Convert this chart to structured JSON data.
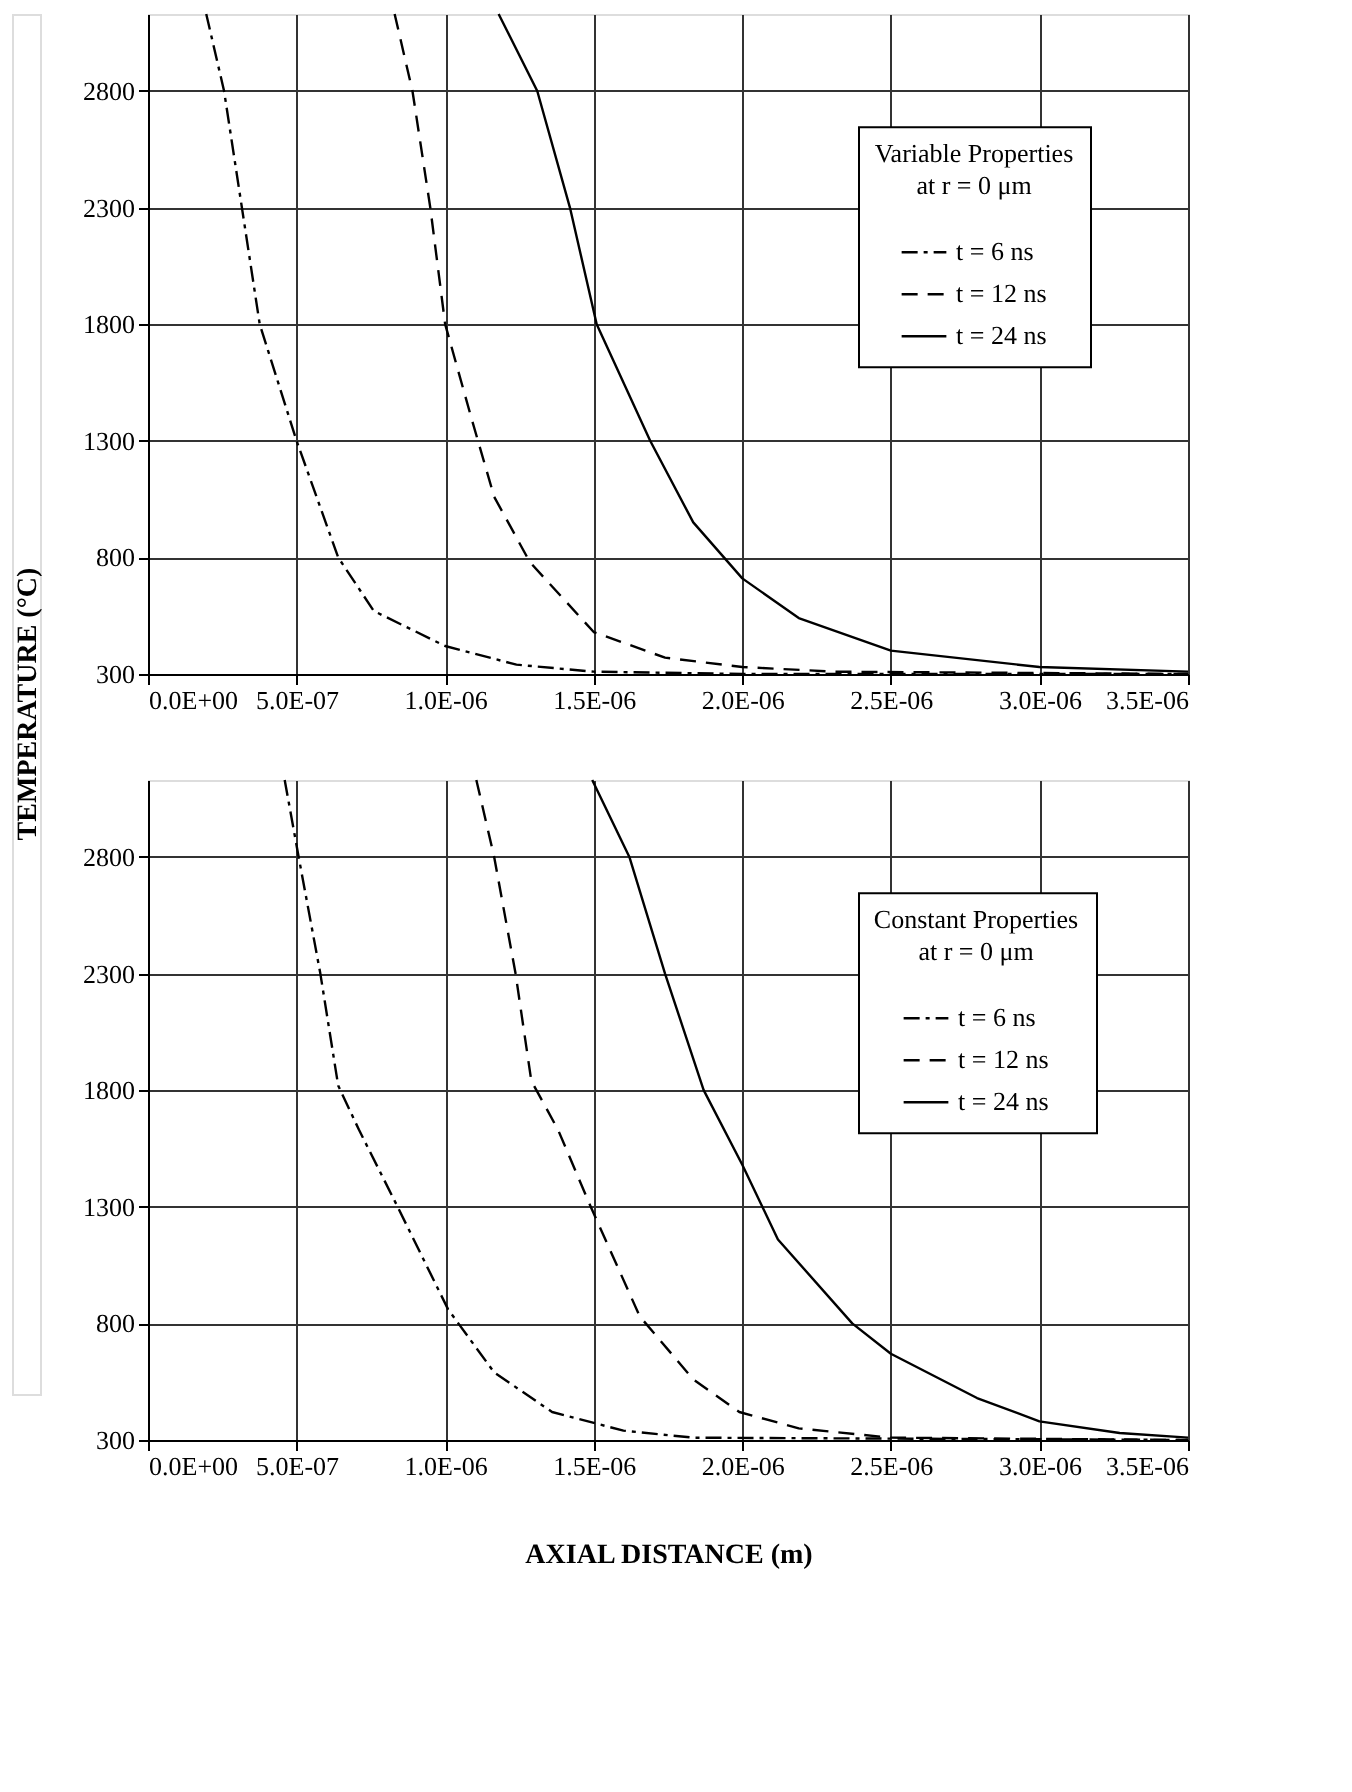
{
  "chart_data": [
    {
      "type": "line",
      "ylabel": "TEMPERATURE (°C)",
      "annotations": [
        "Variable Properties\nat r = 0 μm"
      ],
      "xlim": [
        0,
        3.5e-06
      ],
      "ylim": [
        300,
        3130
      ],
      "xticks": [
        {
          "value": 0,
          "label": "0.0E+00"
        },
        {
          "value": 5e-07,
          "label": "5.0E-07"
        },
        {
          "value": 1e-06,
          "label": "1.0E-06"
        },
        {
          "value": 1.5e-06,
          "label": "1.5E-06"
        },
        {
          "value": 2e-06,
          "label": "2.0E-06"
        },
        {
          "value": 2.5e-06,
          "label": "2.5E-06"
        },
        {
          "value": 3e-06,
          "label": "3.0E-06"
        },
        {
          "value": 3.5e-06,
          "label": "3.5E-06"
        }
      ],
      "yticks": [
        300,
        800,
        1300,
        1800,
        2300,
        2800
      ],
      "grid": true,
      "legend": "right",
      "marker": "none",
      "series": [
        {
          "name": "t = 6 ns",
          "color": "#000000",
          "line_style": "dashdot",
          "x": [
            1.96e-07,
            2.56e-07,
            3.16e-07,
            3.76e-07,
            5e-07,
            6.4e-07,
            7.6e-07,
            1e-06,
            1.24e-06,
            1.5e-06,
            2e-06,
            3.5e-06
          ],
          "values": [
            3130,
            2800,
            2300,
            1800,
            1300,
            800,
            570,
            420,
            340,
            310,
            300,
            300
          ]
        },
        {
          "name": "t = 12 ns",
          "color": "#000000",
          "line_style": "dashed",
          "x": [
            8.3e-07,
            8.9e-07,
            9.5e-07,
            1e-06,
            1.09e-06,
            1.165e-06,
            1.285e-06,
            1.5e-06,
            1.74e-06,
            2e-06,
            2.31e-06,
            3.5e-06
          ],
          "values": [
            3130,
            2800,
            2300,
            1800,
            1390,
            1060,
            780,
            480,
            370,
            330,
            310,
            300
          ]
        },
        {
          "name": "t = 24 ns",
          "color": "#000000",
          "line_style": "solid",
          "x": [
            1.18e-06,
            1.31e-06,
            1.42e-06,
            1.51e-06,
            1.69e-06,
            1.835e-06,
            2e-06,
            2.19e-06,
            2.5e-06,
            3e-06,
            3.5e-06
          ],
          "values": [
            3130,
            2800,
            2300,
            1800,
            1300,
            950,
            710,
            540,
            400,
            330,
            310
          ]
        }
      ]
    },
    {
      "type": "line",
      "xlabel": "AXIAL DISTANCE (m)",
      "annotations": [
        "Constant Properties\nat r = 0 μm"
      ],
      "xlim": [
        0,
        3.5e-06
      ],
      "ylim": [
        300,
        3130
      ],
      "xticks": [
        {
          "value": 0,
          "label": "0.0E+00"
        },
        {
          "value": 5e-07,
          "label": "5.0E-07"
        },
        {
          "value": 1e-06,
          "label": "1.0E-06"
        },
        {
          "value": 1.5e-06,
          "label": "1.5E-06"
        },
        {
          "value": 2e-06,
          "label": "2.0E-06"
        },
        {
          "value": 2.5e-06,
          "label": "2.5E-06"
        },
        {
          "value": 3e-06,
          "label": "3.0E-06"
        },
        {
          "value": 3.5e-06,
          "label": "3.5E-06"
        }
      ],
      "yticks": [
        300,
        800,
        1300,
        1800,
        2300,
        2800
      ],
      "grid": true,
      "legend": "right",
      "marker": "none",
      "series": [
        {
          "name": "t = 6 ns",
          "color": "#000000",
          "line_style": "dashdot",
          "x": [
            4.6e-07,
            5.07e-07,
            5.8e-07,
            6.4e-07,
            7.1e-07,
            8.4e-07,
            1.01e-06,
            1.165e-06,
            1.36e-06,
            1.6e-06,
            1.835e-06,
            3.5e-06
          ],
          "values": [
            3130,
            2800,
            2300,
            1820,
            1630,
            1300,
            860,
            590,
            420,
            340,
            310,
            300
          ]
        },
        {
          "name": "t = 12 ns",
          "color": "#000000",
          "line_style": "dashed",
          "x": [
            1.105e-06,
            1.165e-06,
            1.237e-06,
            1.29e-06,
            1.38e-06,
            1.49e-06,
            1.655e-06,
            1.835e-06,
            1.99e-06,
            2.19e-06,
            2.5e-06,
            3.5e-06
          ],
          "values": [
            3130,
            2800,
            2300,
            1840,
            1630,
            1300,
            830,
            560,
            420,
            350,
            310,
            300
          ]
        },
        {
          "name": "t = 24 ns",
          "color": "#000000",
          "line_style": "solid",
          "x": [
            1.495e-06,
            1.62e-06,
            1.74e-06,
            1.87e-06,
            2e-06,
            2.12e-06,
            2.37e-06,
            2.5e-06,
            2.79e-06,
            3e-06,
            3.27e-06,
            3.5e-06
          ],
          "values": [
            3130,
            2800,
            2300,
            1800,
            1480,
            1160,
            800,
            670,
            480,
            380,
            330,
            310
          ]
        }
      ]
    }
  ]
}
